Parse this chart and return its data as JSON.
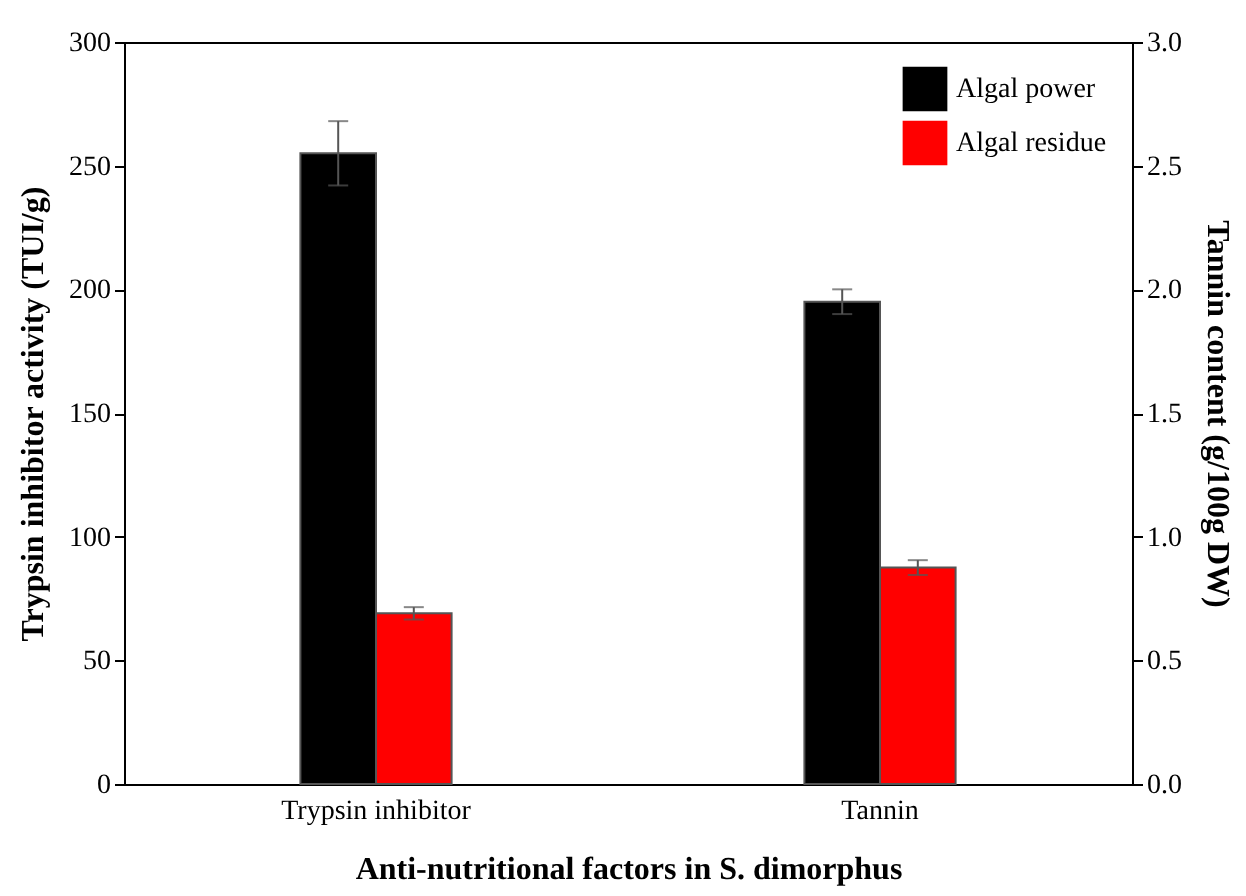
{
  "chart_data": {
    "type": "bar",
    "xlabel": "Anti-nutritional factors in S. dimorphus",
    "ylabel": "Trypsin inhibitor activity (TUI/g)",
    "y2label": "Tannin content (g/100g DW)",
    "categories": [
      "Trypsin inhibitor",
      "Tannin"
    ],
    "series": [
      {
        "name": "Algal power",
        "color": "#000000",
        "values": [
          255,
          null
        ],
        "errors": [
          13,
          null
        ]
      },
      {
        "name": "Algal residue",
        "color": "#ff0000",
        "values": [
          69,
          null
        ],
        "errors": [
          2.5,
          null
        ]
      },
      {
        "color": "#000000",
        "values": [
          null,
          1.95
        ],
        "errors": [
          null,
          0.05
        ],
        "axis": "y2"
      },
      {
        "color": "#ff0000",
        "values": [
          null,
          0.875
        ],
        "errors": [
          null,
          0.03
        ],
        "axis": "y2"
      }
    ],
    "ylim": [
      0,
      300
    ],
    "yticks": [
      0,
      50,
      100,
      150,
      200,
      250,
      300
    ],
    "y2lim": [
      0,
      3
    ],
    "y2ticks": [
      {
        "value": 0,
        "label": "0.0"
      },
      {
        "value": 0.5,
        "label": "0.5"
      },
      {
        "value": 1,
        "label": "1.0"
      },
      {
        "value": 1.5,
        "label": "1.5"
      },
      {
        "value": 2,
        "label": "2.0"
      },
      {
        "value": 2.5,
        "label": "2.5"
      },
      {
        "value": 3,
        "label": "3.0"
      }
    ],
    "grid": false,
    "legend": "top right"
  }
}
